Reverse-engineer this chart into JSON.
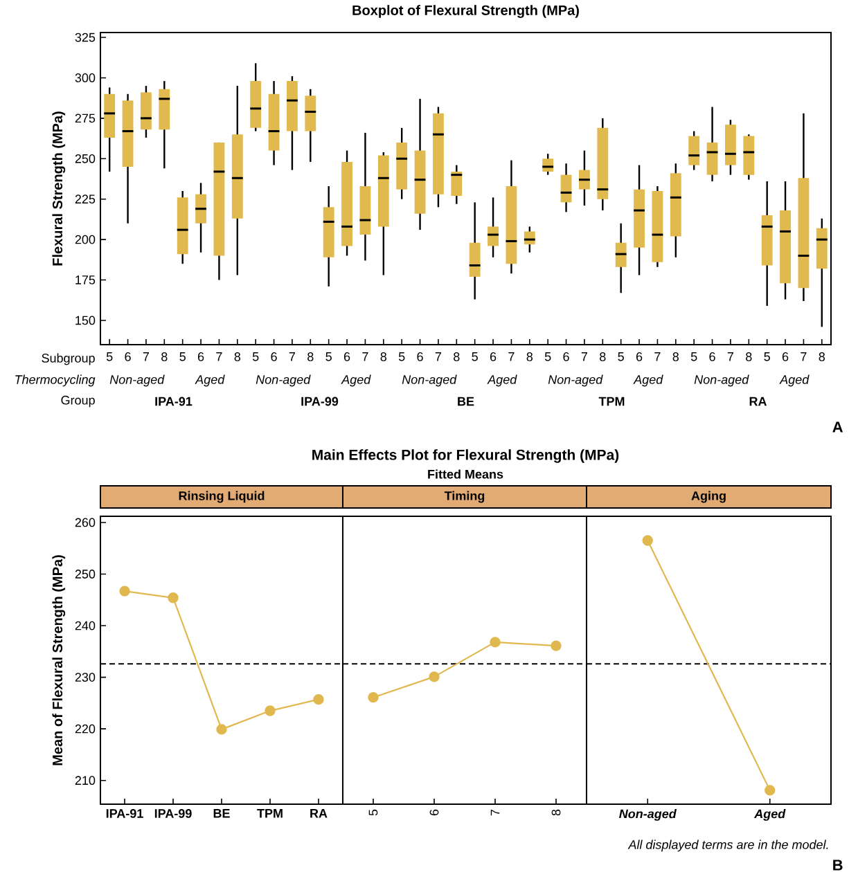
{
  "chart_data": [
    {
      "type": "box",
      "title": "Boxplot of Flexural Strength (MPa)",
      "ylabel": "Flexural Strength (MPa)",
      "color": "#e0b94f",
      "categories": [
        "5",
        "6",
        "7",
        "8",
        "5",
        "6",
        "7",
        "8",
        "5",
        "6",
        "7",
        "8",
        "5",
        "6",
        "7",
        "8",
        "5",
        "6",
        "7",
        "8",
        "5",
        "6",
        "7",
        "8",
        "5",
        "6",
        "7",
        "8",
        "5",
        "6",
        "7",
        "8",
        "5",
        "6",
        "7",
        "8",
        "5",
        "6",
        "7",
        "8"
      ],
      "ylim": [
        135,
        328
      ],
      "yticks": [
        150,
        175,
        200,
        225,
        250,
        275,
        300,
        325
      ],
      "boxes": [
        {
          "low": 242,
          "q1": 263,
          "median": 278,
          "q3": 290,
          "high": 294
        },
        {
          "low": 210,
          "q1": 245,
          "median": 267,
          "q3": 286,
          "high": 290
        },
        {
          "low": 263,
          "q1": 268,
          "median": 275,
          "q3": 291,
          "high": 295
        },
        {
          "low": 244,
          "q1": 268,
          "median": 287,
          "q3": 293,
          "high": 298
        },
        {
          "low": 185,
          "q1": 191,
          "median": 206,
          "q3": 226,
          "high": 230
        },
        {
          "low": 192,
          "q1": 210,
          "median": 219,
          "q3": 228,
          "high": 235
        },
        {
          "low": 175,
          "q1": 190,
          "median": 242,
          "q3": 260,
          "high": 260
        },
        {
          "low": 178,
          "q1": 213,
          "median": 238,
          "q3": 265,
          "high": 295
        },
        {
          "low": 267,
          "q1": 269,
          "median": 281,
          "q3": 298,
          "high": 309
        },
        {
          "low": 246,
          "q1": 255,
          "median": 267,
          "q3": 290,
          "high": 298
        },
        {
          "low": 243,
          "q1": 267,
          "median": 286,
          "q3": 298,
          "high": 301
        },
        {
          "low": 248,
          "q1": 267,
          "median": 279,
          "q3": 289,
          "high": 293
        },
        {
          "low": 171,
          "q1": 189,
          "median": 211,
          "q3": 220,
          "high": 233
        },
        {
          "low": 190,
          "q1": 196,
          "median": 208,
          "q3": 248,
          "high": 255
        },
        {
          "low": 187,
          "q1": 203,
          "median": 212,
          "q3": 233,
          "high": 266
        },
        {
          "low": 178,
          "q1": 208,
          "median": 238,
          "q3": 252,
          "high": 254
        },
        {
          "low": 225,
          "q1": 231,
          "median": 250,
          "q3": 260,
          "high": 269
        },
        {
          "low": 206,
          "q1": 216,
          "median": 237,
          "q3": 255,
          "high": 287
        },
        {
          "low": 220,
          "q1": 228,
          "median": 265,
          "q3": 278,
          "high": 282
        },
        {
          "low": 222,
          "q1": 227,
          "median": 240,
          "q3": 242,
          "high": 246
        },
        {
          "low": 163,
          "q1": 177,
          "median": 184,
          "q3": 198,
          "high": 223
        },
        {
          "low": 189,
          "q1": 196,
          "median": 203,
          "q3": 208,
          "high": 226
        },
        {
          "low": 179,
          "q1": 185,
          "median": 199,
          "q3": 233,
          "high": 249
        },
        {
          "low": 192,
          "q1": 197,
          "median": 200,
          "q3": 205,
          "high": 208
        },
        {
          "low": 240,
          "q1": 242,
          "median": 245,
          "q3": 250,
          "high": 253
        },
        {
          "low": 217,
          "q1": 223,
          "median": 229,
          "q3": 240,
          "high": 247
        },
        {
          "low": 221,
          "q1": 231,
          "median": 237,
          "q3": 243,
          "high": 255
        },
        {
          "low": 218,
          "q1": 225,
          "median": 231,
          "q3": 269,
          "high": 275
        },
        {
          "low": 167,
          "q1": 183,
          "median": 191,
          "q3": 198,
          "high": 210
        },
        {
          "low": 178,
          "q1": 195,
          "median": 218,
          "q3": 231,
          "high": 246
        },
        {
          "low": 183,
          "q1": 186,
          "median": 203,
          "q3": 230,
          "high": 233
        },
        {
          "low": 189,
          "q1": 202,
          "median": 226,
          "q3": 241,
          "high": 247
        },
        {
          "low": 243,
          "q1": 246,
          "median": 252,
          "q3": 264,
          "high": 267
        },
        {
          "low": 236,
          "q1": 240,
          "median": 254,
          "q3": 260,
          "high": 282
        },
        {
          "low": 240,
          "q1": 246,
          "median": 253,
          "q3": 271,
          "high": 274
        },
        {
          "low": 237,
          "q1": 240,
          "median": 254,
          "q3": 264,
          "high": 265
        },
        {
          "low": 159,
          "q1": 184,
          "median": 208,
          "q3": 215,
          "high": 236
        },
        {
          "low": 163,
          "q1": 173,
          "median": 205,
          "q3": 218,
          "high": 236
        },
        {
          "low": 162,
          "q1": 170,
          "median": 190,
          "q3": 238,
          "high": 278
        },
        {
          "low": 146,
          "q1": 182,
          "median": 200,
          "q3": 207,
          "high": 213
        }
      ],
      "annotations": [
        "Subgroup",
        "Thermocycling",
        "Group",
        "Non-aged",
        "Aged",
        "Non-aged",
        "Aged",
        "Non-aged",
        "Aged",
        "Non-aged",
        "Aged",
        "Non-aged",
        "Aged",
        "IPA-91",
        "IPA-99",
        "BE",
        "TPM",
        "RA",
        "A"
      ]
    },
    {
      "type": "line",
      "title": "Rinsing Liquid",
      "ylabel": "Mean of Flexural Strength (MPa)",
      "color": "#e0b84f",
      "marker": "circle",
      "categories": [
        "IPA-91",
        "IPA-99",
        "BE",
        "TPM",
        "RA"
      ],
      "values": [
        246.7,
        245.4,
        219.9,
        223.5,
        225.7
      ],
      "ylim": [
        205.4,
        261.2
      ],
      "yticks": [
        210,
        220,
        230,
        240,
        250,
        260
      ],
      "ref_lines": [
        {
          "axis": "y",
          "value": 232.6,
          "line_style": "dashed"
        }
      ],
      "annotations": [
        "Main Effects Plot for Flexural Strength (MPa)",
        "Fitted Means"
      ]
    },
    {
      "type": "line",
      "title": "Timing",
      "color": "#e0b84f",
      "marker": "circle",
      "tick_labels": "x",
      "categories": [
        "5",
        "6",
        "7",
        "8"
      ],
      "values": [
        226.1,
        230.1,
        236.8,
        236.1
      ],
      "ylim": [
        205.4,
        261.2
      ],
      "ref_lines": [
        {
          "axis": "y",
          "value": 232.6,
          "line_style": "dashed"
        }
      ]
    },
    {
      "type": "line",
      "title": "Aging",
      "color": "#e0b84f",
      "marker": "circle",
      "tick_labels": "x",
      "categories": [
        "Non-aged",
        "Aged"
      ],
      "values": [
        256.5,
        208.1
      ],
      "ylim": [
        205.4,
        261.2
      ],
      "ref_lines": [
        {
          "axis": "y",
          "value": 232.6,
          "line_style": "dashed"
        }
      ],
      "annotations": [
        "All displayed terms are in the model.",
        "B"
      ]
    }
  ]
}
